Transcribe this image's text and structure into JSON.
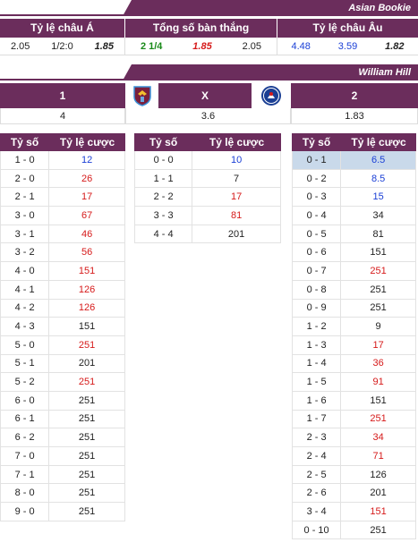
{
  "asian_bookie": {
    "name": "Asian Bookie",
    "headers": [
      "Tỷ lệ châu Á",
      "Tổng số bàn thắng",
      "Tỷ lệ châu Âu"
    ],
    "asian": {
      "home": "2.05",
      "line": "1/2:0",
      "away": "1.85"
    },
    "total": {
      "line": "2 1/4",
      "over": "1.85",
      "under": "2.05"
    },
    "european": {
      "home": "4.48",
      "draw": "3.59",
      "away": "1.82"
    }
  },
  "william_hill": {
    "name": "William Hill",
    "cols": [
      "1",
      "X",
      "2"
    ],
    "values": [
      "4",
      "3.6",
      "1.83"
    ],
    "home_logo": "aston-villa-crest",
    "away_logo": "chelsea-crest"
  },
  "score_header": {
    "score": "Tỷ số",
    "odds": "Tỷ lệ cược"
  },
  "home_wins": [
    {
      "score": "1 - 0",
      "odds": "12",
      "color": "blue"
    },
    {
      "score": "2 - 0",
      "odds": "26",
      "color": "red"
    },
    {
      "score": "2 - 1",
      "odds": "17",
      "color": "red"
    },
    {
      "score": "3 - 0",
      "odds": "67",
      "color": "red"
    },
    {
      "score": "3 - 1",
      "odds": "46",
      "color": "red"
    },
    {
      "score": "3 - 2",
      "odds": "56",
      "color": "red"
    },
    {
      "score": "4 - 0",
      "odds": "151",
      "color": "red"
    },
    {
      "score": "4 - 1",
      "odds": "126",
      "color": "red"
    },
    {
      "score": "4 - 2",
      "odds": "126",
      "color": "red"
    },
    {
      "score": "4 - 3",
      "odds": "151",
      "color": "black"
    },
    {
      "score": "5 - 0",
      "odds": "251",
      "color": "red"
    },
    {
      "score": "5 - 1",
      "odds": "201",
      "color": "black"
    },
    {
      "score": "5 - 2",
      "odds": "251",
      "color": "red"
    },
    {
      "score": "6 - 0",
      "odds": "251",
      "color": "black"
    },
    {
      "score": "6 - 1",
      "odds": "251",
      "color": "black"
    },
    {
      "score": "6 - 2",
      "odds": "251",
      "color": "black"
    },
    {
      "score": "7 - 0",
      "odds": "251",
      "color": "black"
    },
    {
      "score": "7 - 1",
      "odds": "251",
      "color": "black"
    },
    {
      "score": "8 - 0",
      "odds": "251",
      "color": "black"
    },
    {
      "score": "9 - 0",
      "odds": "251",
      "color": "black"
    }
  ],
  "draws": [
    {
      "score": "0 - 0",
      "odds": "10",
      "color": "blue"
    },
    {
      "score": "1 - 1",
      "odds": "7",
      "color": "black"
    },
    {
      "score": "2 - 2",
      "odds": "17",
      "color": "red"
    },
    {
      "score": "3 - 3",
      "odds": "81",
      "color": "red"
    },
    {
      "score": "4 - 4",
      "odds": "201",
      "color": "black"
    }
  ],
  "away_wins": [
    {
      "score": "0 - 1",
      "odds": "6.5",
      "color": "blue",
      "highlight": true
    },
    {
      "score": "0 - 2",
      "odds": "8.5",
      "color": "blue"
    },
    {
      "score": "0 - 3",
      "odds": "15",
      "color": "blue"
    },
    {
      "score": "0 - 4",
      "odds": "34",
      "color": "black"
    },
    {
      "score": "0 - 5",
      "odds": "81",
      "color": "black"
    },
    {
      "score": "0 - 6",
      "odds": "151",
      "color": "black"
    },
    {
      "score": "0 - 7",
      "odds": "251",
      "color": "red"
    },
    {
      "score": "0 - 8",
      "odds": "251",
      "color": "black"
    },
    {
      "score": "0 - 9",
      "odds": "251",
      "color": "black"
    },
    {
      "score": "1 - 2",
      "odds": "9",
      "color": "black"
    },
    {
      "score": "1 - 3",
      "odds": "17",
      "color": "red"
    },
    {
      "score": "1 - 4",
      "odds": "36",
      "color": "red"
    },
    {
      "score": "1 - 5",
      "odds": "91",
      "color": "red"
    },
    {
      "score": "1 - 6",
      "odds": "151",
      "color": "black"
    },
    {
      "score": "1 - 7",
      "odds": "251",
      "color": "red"
    },
    {
      "score": "2 - 3",
      "odds": "34",
      "color": "red"
    },
    {
      "score": "2 - 4",
      "odds": "71",
      "color": "red"
    },
    {
      "score": "2 - 5",
      "odds": "126",
      "color": "black"
    },
    {
      "score": "2 - 6",
      "odds": "201",
      "color": "black"
    },
    {
      "score": "3 - 4",
      "odds": "151",
      "color": "red"
    },
    {
      "score": "0 - 10",
      "odds": "251",
      "color": "black"
    }
  ],
  "colors": {
    "brand": "#6b2d5c",
    "red": "#d61a1a",
    "blue": "#1a3fd6",
    "green": "#1a8a1a",
    "highlight": "#c9d9ea"
  }
}
